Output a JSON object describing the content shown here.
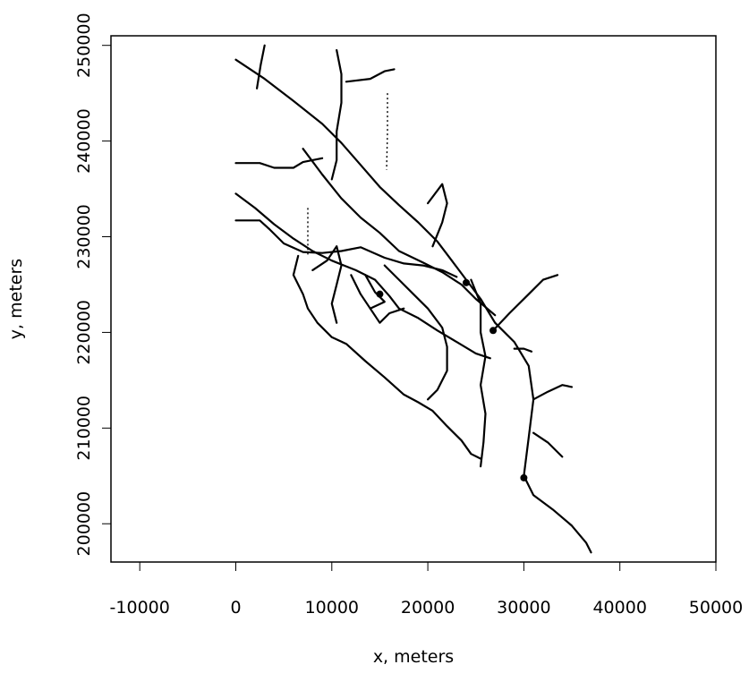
{
  "chart_data": {
    "type": "line",
    "xlabel": "x, meters",
    "ylabel": "y, meters",
    "xlim": [
      -13000,
      50000
    ],
    "ylim": [
      196000,
      251000
    ],
    "x_ticks": [
      -10000,
      0,
      10000,
      20000,
      30000,
      40000,
      50000
    ],
    "x_tick_labels": [
      "-10000",
      "0",
      "10000",
      "20000",
      "30000",
      "40000",
      "50000"
    ],
    "y_ticks": [
      200000,
      210000,
      220000,
      230000,
      240000,
      250000
    ],
    "y_tick_labels": [
      "200000",
      "210000",
      "220000",
      "230000",
      "240000",
      "250000"
    ],
    "grid": false,
    "series": [
      {
        "values": [
          [
            0,
            248500
          ],
          [
            3000,
            246500
          ],
          [
            6000,
            244200
          ],
          [
            9000,
            241800
          ],
          [
            11000,
            239800
          ],
          [
            13000,
            237500
          ],
          [
            15000,
            235200
          ],
          [
            17000,
            233300
          ],
          [
            19000,
            231500
          ],
          [
            21000,
            229500
          ],
          [
            22500,
            227500
          ],
          [
            24000,
            225500
          ],
          [
            25500,
            223500
          ],
          [
            27000,
            221000
          ],
          [
            29000,
            219000
          ],
          [
            30500,
            216500
          ],
          [
            31000,
            213000
          ],
          [
            30500,
            209000
          ],
          [
            30000,
            205000
          ],
          [
            31000,
            203000
          ],
          [
            33000,
            201500
          ],
          [
            35000,
            199800
          ],
          [
            36500,
            198000
          ],
          [
            37000,
            197000
          ]
        ]
      },
      {
        "values": [
          [
            0,
            234500
          ],
          [
            2000,
            233000
          ],
          [
            4000,
            231300
          ],
          [
            6000,
            229800
          ],
          [
            8000,
            228500
          ],
          [
            10000,
            227500
          ],
          [
            12500,
            226500
          ],
          [
            14500,
            225500
          ],
          [
            16000,
            223800
          ],
          [
            17000,
            222500
          ],
          [
            19000,
            221500
          ],
          [
            21000,
            220200
          ],
          [
            23000,
            219000
          ],
          [
            25000,
            217800
          ],
          [
            26500,
            217300
          ]
        ]
      },
      {
        "values": [
          [
            7000,
            239200
          ],
          [
            9000,
            236500
          ],
          [
            11000,
            234000
          ],
          [
            13000,
            232000
          ],
          [
            15000,
            230400
          ],
          [
            17000,
            228500
          ],
          [
            19500,
            227300
          ],
          [
            21500,
            226300
          ],
          [
            23500,
            225000
          ],
          [
            25000,
            223500
          ],
          [
            27000,
            221800
          ]
        ]
      },
      {
        "values": [
          [
            3000,
            250000
          ],
          [
            2600,
            248000
          ],
          [
            2200,
            245500
          ]
        ]
      },
      {
        "values": [
          [
            10500,
            249500
          ],
          [
            11000,
            247000
          ],
          [
            11000,
            244000
          ],
          [
            10500,
            241000
          ],
          [
            10500,
            238000
          ],
          [
            10000,
            236000
          ]
        ]
      },
      {
        "values": [
          [
            11500,
            246200
          ],
          [
            14000,
            246500
          ],
          [
            15500,
            247300
          ],
          [
            16500,
            247500
          ]
        ]
      },
      {
        "values": [
          [
            0,
            237700
          ],
          [
            2500,
            237700
          ],
          [
            4000,
            237200
          ],
          [
            6000,
            237200
          ],
          [
            7000,
            237800
          ],
          [
            9000,
            238200
          ]
        ]
      },
      {
        "values": [
          [
            0,
            231700
          ],
          [
            2500,
            231700
          ],
          [
            3500,
            230800
          ],
          [
            5000,
            229300
          ],
          [
            7000,
            228400
          ],
          [
            9000,
            228300
          ],
          [
            11000,
            228500
          ],
          [
            13000,
            228900
          ],
          [
            15500,
            227800
          ],
          [
            17500,
            227200
          ],
          [
            19500,
            227000
          ],
          [
            21500,
            226500
          ],
          [
            23000,
            225800
          ]
        ]
      },
      {
        "values": [
          [
            6500,
            228000
          ],
          [
            6000,
            226000
          ],
          [
            7000,
            224000
          ],
          [
            7500,
            222500
          ],
          [
            8500,
            221000
          ],
          [
            10000,
            219500
          ],
          [
            11500,
            218800
          ],
          [
            13500,
            217000
          ],
          [
            15500,
            215300
          ],
          [
            17500,
            213500
          ],
          [
            19000,
            212700
          ],
          [
            20500,
            211800
          ],
          [
            22000,
            210200
          ],
          [
            23500,
            208700
          ],
          [
            24500,
            207300
          ],
          [
            25500,
            206800
          ]
        ]
      },
      {
        "values": [
          [
            20500,
            229000
          ],
          [
            21500,
            231500
          ],
          [
            22000,
            233500
          ],
          [
            21500,
            235500
          ],
          [
            20000,
            233500
          ]
        ]
      },
      {
        "values": [
          [
            15500,
            227000
          ],
          [
            17000,
            225500
          ],
          [
            18500,
            224000
          ],
          [
            20000,
            222500
          ],
          [
            21500,
            220500
          ],
          [
            22000,
            218500
          ],
          [
            22000,
            216000
          ],
          [
            21000,
            214000
          ],
          [
            20000,
            213000
          ]
        ]
      },
      {
        "values": [
          [
            24500,
            225500
          ],
          [
            25500,
            223000
          ],
          [
            25500,
            220000
          ],
          [
            26000,
            217500
          ],
          [
            25500,
            214500
          ],
          [
            26000,
            211500
          ],
          [
            25800,
            208500
          ],
          [
            25500,
            206000
          ]
        ]
      },
      {
        "values": [
          [
            26800,
            220200
          ],
          [
            28500,
            222000
          ],
          [
            30500,
            224000
          ],
          [
            32000,
            225500
          ],
          [
            33500,
            226000
          ]
        ]
      },
      {
        "values": [
          [
            29000,
            218300
          ],
          [
            30000,
            218300
          ],
          [
            30800,
            218000
          ]
        ]
      },
      {
        "values": [
          [
            31000,
            213000
          ],
          [
            32500,
            213800
          ],
          [
            34000,
            214500
          ],
          [
            35000,
            214300
          ]
        ]
      },
      {
        "values": [
          [
            31000,
            209500
          ],
          [
            32500,
            208500
          ],
          [
            33500,
            207500
          ],
          [
            34000,
            207000
          ]
        ]
      },
      {
        "values": [
          [
            8000,
            226500
          ],
          [
            9500,
            227500
          ],
          [
            10500,
            229000
          ],
          [
            11000,
            227000
          ],
          [
            10500,
            225000
          ],
          [
            10000,
            223000
          ],
          [
            10500,
            221000
          ]
        ]
      },
      {
        "values": [
          [
            12000,
            226000
          ],
          [
            13000,
            224000
          ],
          [
            14000,
            222500
          ],
          [
            15000,
            221000
          ],
          [
            16000,
            222000
          ],
          [
            17500,
            222500
          ]
        ]
      },
      {
        "values": [
          [
            13500,
            226000
          ],
          [
            14500,
            224200
          ],
          [
            15500,
            223200
          ],
          [
            14000,
            222500
          ]
        ]
      }
    ],
    "dotted_series": [
      {
        "values": [
          [
            15800,
            245000
          ],
          [
            15800,
            241000
          ],
          [
            15700,
            237000
          ]
        ]
      },
      {
        "values": [
          [
            7500,
            233000
          ],
          [
            7500,
            230500
          ],
          [
            7500,
            228000
          ]
        ]
      }
    ]
  }
}
